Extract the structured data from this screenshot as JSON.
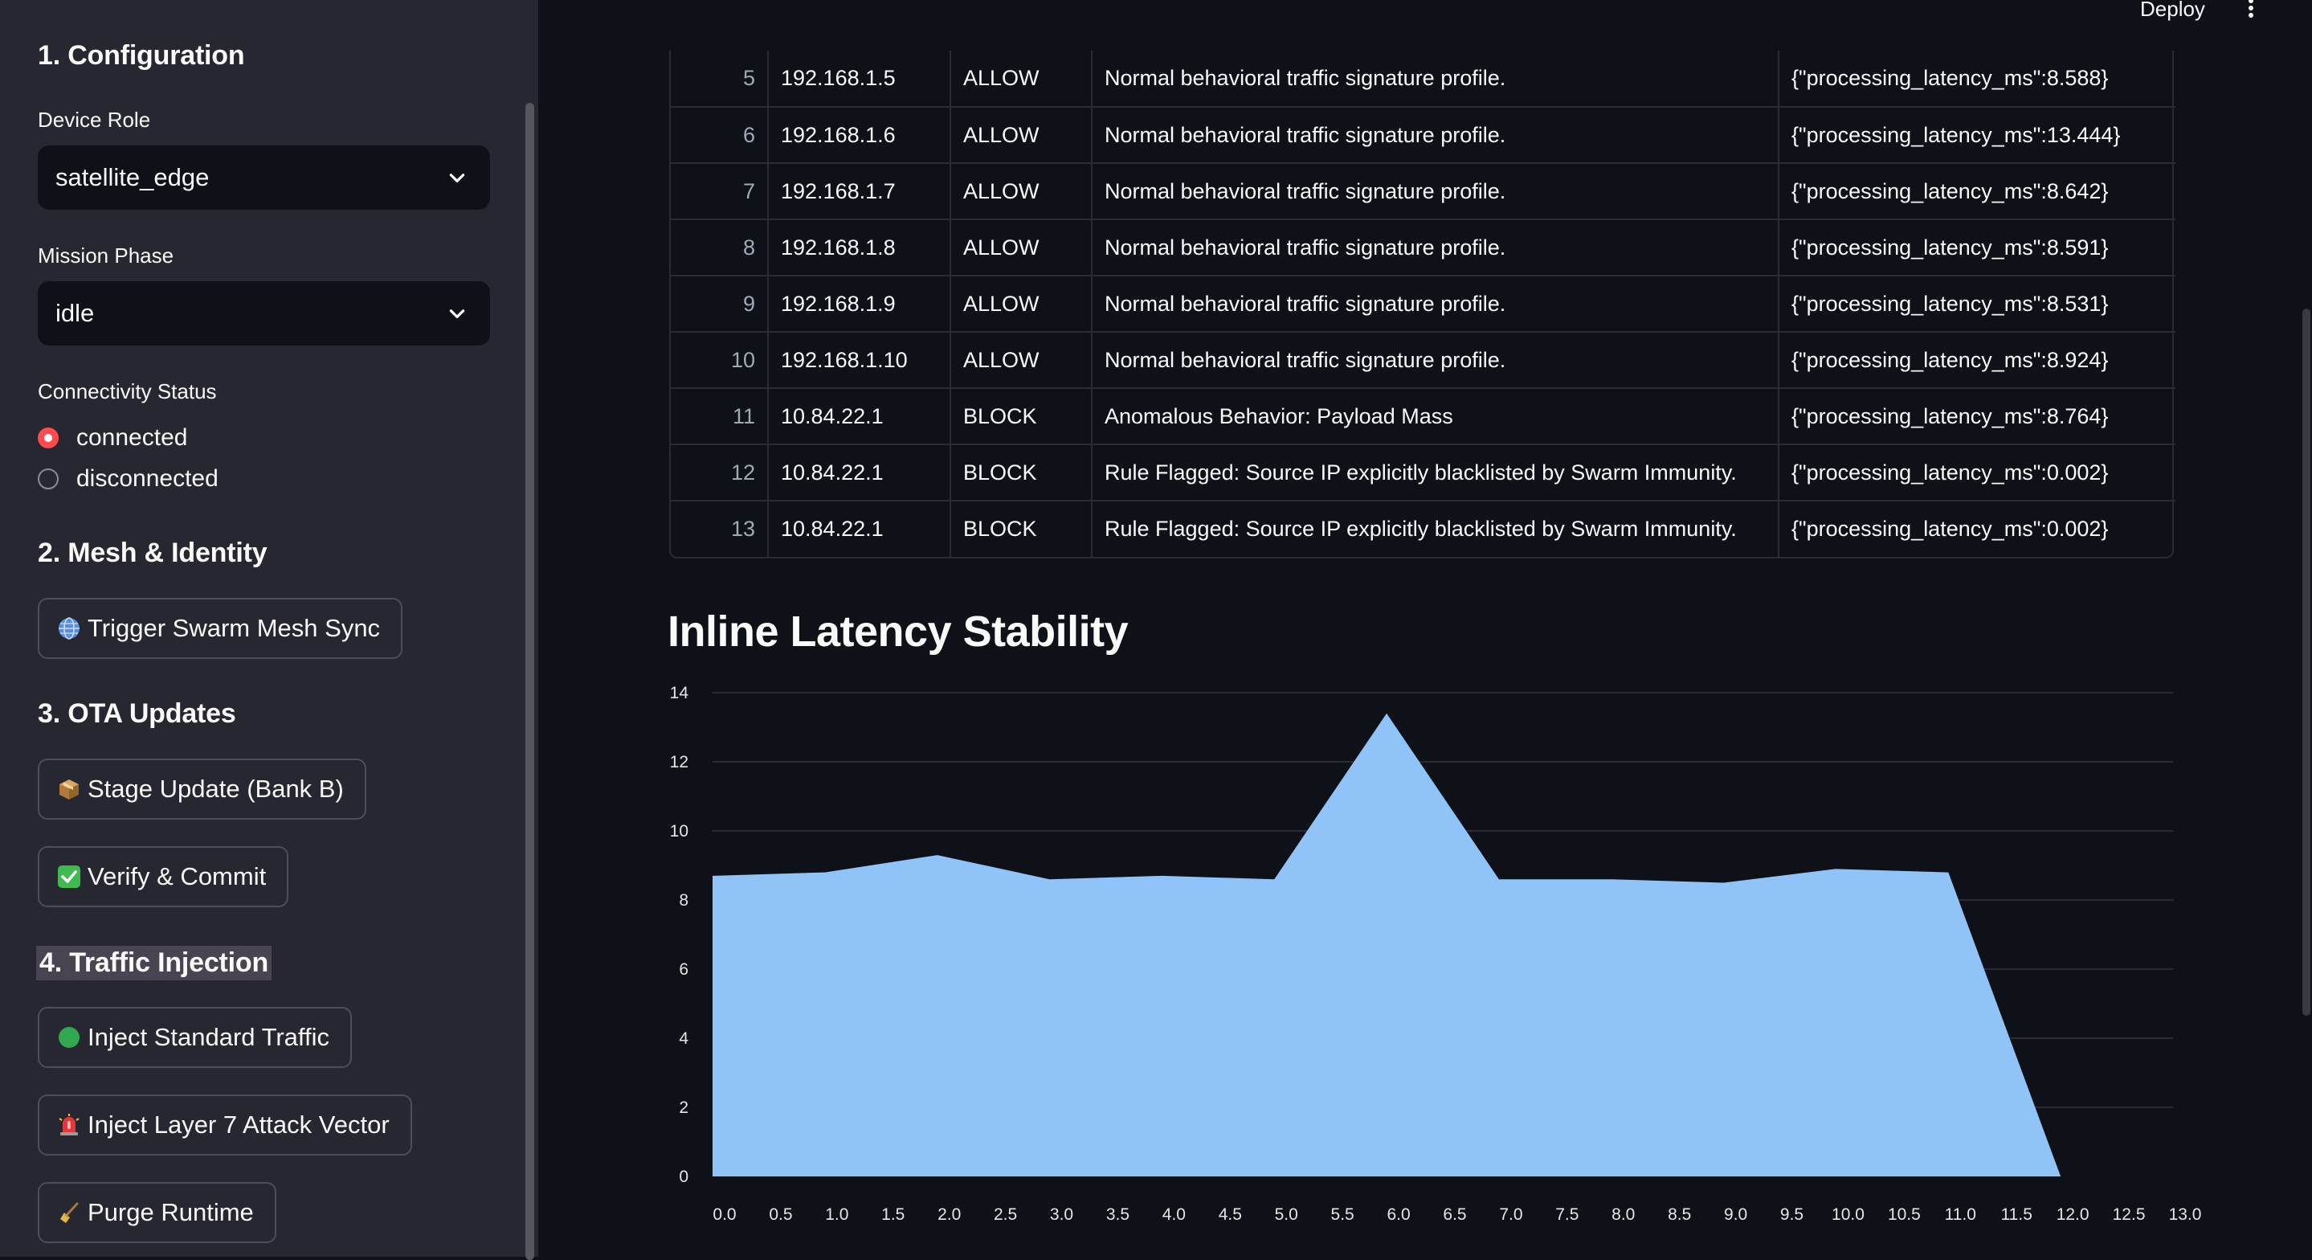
{
  "sidebar": {
    "section_config": "1. Configuration",
    "device_role": {
      "label": "Device Role",
      "value": "satellite_edge"
    },
    "mission_phase": {
      "label": "Mission Phase",
      "value": "idle"
    },
    "connectivity": {
      "label": "Connectivity Status",
      "options": [
        {
          "label": "connected",
          "selected": true
        },
        {
          "label": "disconnected",
          "selected": false
        }
      ]
    },
    "section_mesh": "2. Mesh & Identity",
    "mesh_sync_button": "Trigger Swarm Mesh Sync",
    "section_ota": "3. OTA Updates",
    "stage_update_button": "Stage Update (Bank B)",
    "verify_commit_button": "Verify & Commit",
    "section_traffic": "4. Traffic Injection",
    "inject_standard_button": "Inject Standard Traffic",
    "inject_attack_button": "Inject Layer 7 Attack Vector",
    "purge_button": "Purge Runtime"
  },
  "header": {
    "deploy_label": "Deploy"
  },
  "table": {
    "rows": [
      {
        "index": "5",
        "ip": "192.168.1.5",
        "action": "ALLOW",
        "reason": "Normal behavioral traffic signature profile.",
        "meta": "{\"processing_latency_ms\":8.588}"
      },
      {
        "index": "6",
        "ip": "192.168.1.6",
        "action": "ALLOW",
        "reason": "Normal behavioral traffic signature profile.",
        "meta": "{\"processing_latency_ms\":13.444}"
      },
      {
        "index": "7",
        "ip": "192.168.1.7",
        "action": "ALLOW",
        "reason": "Normal behavioral traffic signature profile.",
        "meta": "{\"processing_latency_ms\":8.642}"
      },
      {
        "index": "8",
        "ip": "192.168.1.8",
        "action": "ALLOW",
        "reason": "Normal behavioral traffic signature profile.",
        "meta": "{\"processing_latency_ms\":8.591}"
      },
      {
        "index": "9",
        "ip": "192.168.1.9",
        "action": "ALLOW",
        "reason": "Normal behavioral traffic signature profile.",
        "meta": "{\"processing_latency_ms\":8.531}"
      },
      {
        "index": "10",
        "ip": "192.168.1.10",
        "action": "ALLOW",
        "reason": "Normal behavioral traffic signature profile.",
        "meta": "{\"processing_latency_ms\":8.924}"
      },
      {
        "index": "11",
        "ip": "10.84.22.1",
        "action": "BLOCK",
        "reason": "Anomalous Behavior: Payload Mass",
        "meta": "{\"processing_latency_ms\":8.764}"
      },
      {
        "index": "12",
        "ip": "10.84.22.1",
        "action": "BLOCK",
        "reason": "Rule Flagged: Source IP explicitly blacklisted by Swarm Immunity.",
        "meta": "{\"processing_latency_ms\":0.002}"
      },
      {
        "index": "13",
        "ip": "10.84.22.1",
        "action": "BLOCK",
        "reason": "Rule Flagged: Source IP explicitly blacklisted by Swarm Immunity.",
        "meta": "{\"processing_latency_ms\":0.002}"
      }
    ]
  },
  "chart_title": "Inline Latency Stability",
  "chart_data": {
    "type": "area",
    "title": "Inline Latency Stability",
    "xlabel": "",
    "ylabel": "",
    "x": [
      0,
      1,
      2,
      3,
      4,
      5,
      6,
      7,
      8,
      9,
      10,
      11,
      12
    ],
    "series": [
      {
        "values": [
          8.7,
          8.8,
          9.3,
          8.6,
          8.7,
          8.6,
          13.4,
          8.6,
          8.6,
          8.5,
          8.9,
          8.8,
          0.0
        ]
      }
    ],
    "xlim": [
      0,
      13
    ],
    "ylim": [
      0,
      14
    ],
    "x_ticks": [
      "0.0",
      "0.5",
      "1.0",
      "1.5",
      "2.0",
      "2.5",
      "3.0",
      "3.5",
      "4.0",
      "4.5",
      "5.0",
      "5.5",
      "6.0",
      "6.5",
      "7.0",
      "7.5",
      "8.0",
      "8.5",
      "9.0",
      "9.5",
      "10.0",
      "10.5",
      "11.0",
      "11.5",
      "12.0",
      "12.5",
      "13.0"
    ],
    "y_ticks": [
      "0",
      "2",
      "4",
      "6",
      "8",
      "10",
      "12",
      "14"
    ],
    "grid": "horizontal",
    "fill_color": "#90c4f8"
  }
}
